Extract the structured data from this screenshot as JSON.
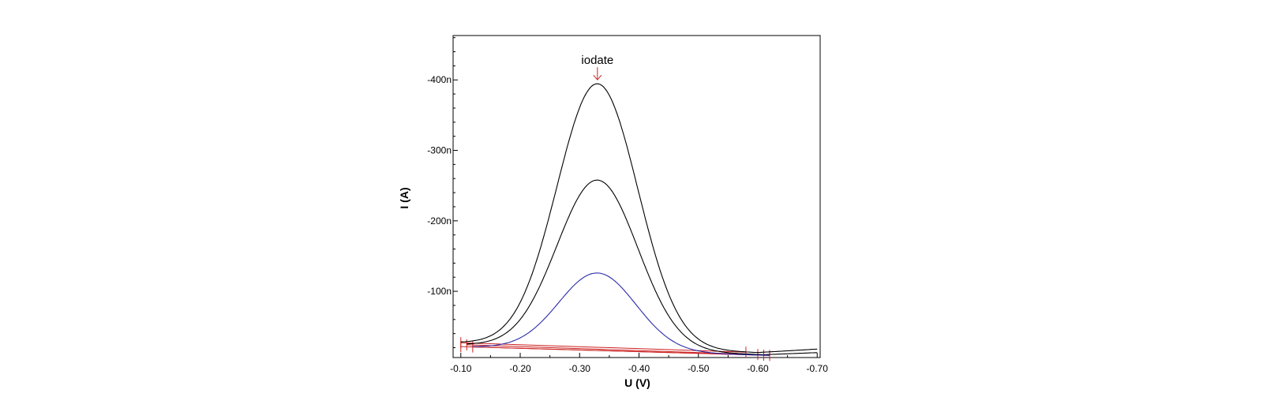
{
  "chart_data": {
    "type": "line",
    "xlabel": "U (V)",
    "ylabel": "I (A)",
    "xlim": [
      -0.087,
      -0.705
    ],
    "ylim": [
      -6,
      -463
    ],
    "x_ticks": [
      -0.1,
      -0.2,
      -0.3,
      -0.4,
      -0.5,
      -0.6,
      -0.7
    ],
    "x_tick_labels": [
      "-0.10",
      "-0.20",
      "-0.30",
      "-0.40",
      "-0.50",
      "-0.60",
      "-0.70"
    ],
    "y_ticks": [
      -100,
      -200,
      -300,
      -400
    ],
    "y_tick_labels": [
      "-100n",
      "-200n",
      "-300n",
      "-400n"
    ],
    "y_unit": "nA",
    "grid": false,
    "annotation": {
      "text": "iodate",
      "x": -0.33,
      "y": -399,
      "color": "#cc2222"
    },
    "series": [
      {
        "color": "#000000",
        "baseline": {
          "start": [
            -0.1,
            -27
          ],
          "end": [
            -0.6,
            -13
          ]
        },
        "peak": {
          "x": -0.33,
          "height": 374,
          "width": 0.068
        },
        "x_end": -0.7,
        "tail_end": -18
      },
      {
        "color": "#000000",
        "baseline": {
          "start": [
            -0.11,
            -24
          ],
          "end": [
            -0.61,
            -10
          ]
        },
        "peak": {
          "x": -0.33,
          "height": 240,
          "width": 0.068
        },
        "x_end": -0.7,
        "tail_end": -13
      },
      {
        "color": "#2a2aaa",
        "baseline": {
          "start": [
            -0.12,
            -21
          ],
          "end": [
            -0.62,
            -9
          ]
        },
        "peak": {
          "x": -0.33,
          "height": 110,
          "width": 0.065
        },
        "x_end": -0.62,
        "tail_end": -9
      }
    ],
    "baselines": [
      {
        "x_start": -0.1,
        "x_end": -0.58,
        "color": "#cc2222"
      },
      {
        "x_start": -0.11,
        "x_end": -0.6,
        "color": "#cc2222"
      },
      {
        "x_start": -0.12,
        "x_end": -0.61,
        "color": "#cc2222"
      },
      {
        "x_start": -0.1,
        "x_end": -0.62,
        "color": "#cc2222"
      }
    ]
  }
}
